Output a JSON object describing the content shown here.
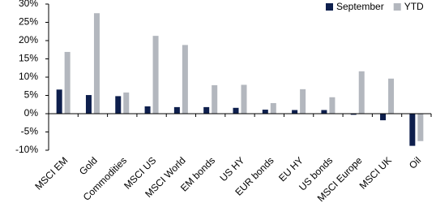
{
  "chart_data": {
    "type": "bar",
    "categories": [
      "MSCI EM",
      "Gold",
      "Commodities",
      "MSCI US",
      "MSCI World",
      "EM bonds",
      "US HY",
      "EUR bonds",
      "EU HY",
      "US bonds",
      "MSCI Europe",
      "MSCI UK",
      "Oil"
    ],
    "series": [
      {
        "name": "September",
        "color": "#0e1f4d",
        "values": [
          6.6,
          5.1,
          4.8,
          2.0,
          1.8,
          1.8,
          1.6,
          1.1,
          1.0,
          1.0,
          -0.3,
          -1.8,
          -8.8
        ]
      },
      {
        "name": "YTD",
        "color": "#b3b7be",
        "values": [
          16.9,
          27.5,
          5.8,
          21.3,
          18.8,
          7.8,
          7.9,
          2.9,
          6.7,
          4.5,
          11.6,
          9.6,
          -7.5
        ]
      }
    ],
    "ylim": [
      -10,
      30
    ],
    "yticks": [
      {
        "value": -10,
        "label": "-10%"
      },
      {
        "value": -5,
        "label": "-5%"
      },
      {
        "value": 0,
        "label": "0%"
      },
      {
        "value": 5,
        "label": "5%"
      },
      {
        "value": 10,
        "label": "10%"
      },
      {
        "value": 15,
        "label": "15%"
      },
      {
        "value": 20,
        "label": "20%"
      },
      {
        "value": 25,
        "label": "25%"
      },
      {
        "value": 30,
        "label": "30%"
      }
    ],
    "legend": "top-right"
  }
}
